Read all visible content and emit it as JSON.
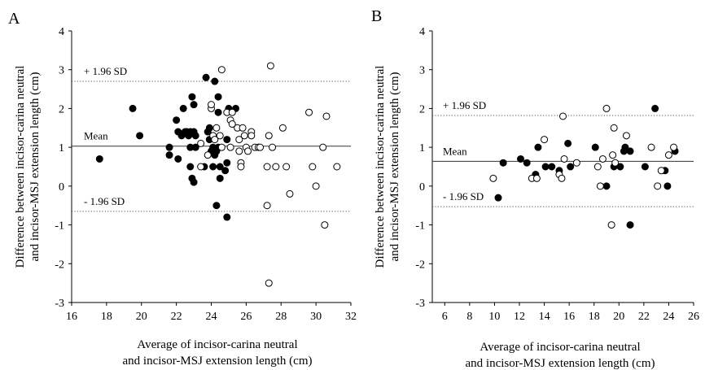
{
  "chart_data": [
    {
      "type": "scatter",
      "panel_label": "A",
      "xlabel": [
        "Average of incisor-carina neutral",
        "and incisor-MSJ extension length (cm)"
      ],
      "ylabel": [
        "Difference between  incisor-carina neutral",
        "and incisor-MSJ extension length (cm)"
      ],
      "xlim": [
        16,
        32
      ],
      "ylim": [
        -3,
        4
      ],
      "xticks": [
        16,
        18,
        20,
        22,
        24,
        26,
        28,
        30,
        32
      ],
      "yticks": [
        -3,
        -2,
        -1,
        0,
        1,
        2,
        3,
        4
      ],
      "grid": false,
      "reference_lines": [
        {
          "label": "+ 1.96 SD",
          "y": 2.7,
          "style": "dotted"
        },
        {
          "label": "Mean",
          "y": 1.03,
          "style": "solid"
        },
        {
          "label": "- 1.96 SD",
          "y": -0.65,
          "style": "dotted"
        }
      ],
      "series": [
        {
          "marker": "filled",
          "points": [
            [
              17.6,
              0.7
            ],
            [
              19.5,
              2.0
            ],
            [
              19.9,
              1.3
            ],
            [
              21.6,
              1.0
            ],
            [
              21.6,
              0.8
            ],
            [
              22.0,
              1.7
            ],
            [
              22.1,
              1.4
            ],
            [
              22.1,
              0.7
            ],
            [
              22.3,
              1.3
            ],
            [
              22.4,
              2.0
            ],
            [
              22.5,
              1.4
            ],
            [
              22.6,
              1.4
            ],
            [
              22.7,
              1.3
            ],
            [
              22.8,
              1.0
            ],
            [
              22.8,
              1.4
            ],
            [
              22.8,
              0.5
            ],
            [
              22.9,
              2.3
            ],
            [
              22.9,
              0.2
            ],
            [
              23.0,
              1.4
            ],
            [
              23.0,
              2.1
            ],
            [
              23.0,
              0.1
            ],
            [
              23.1,
              1.3
            ],
            [
              23.1,
              1.0
            ],
            [
              23.6,
              0.5
            ],
            [
              23.7,
              2.8
            ],
            [
              23.8,
              1.4
            ],
            [
              23.9,
              1.5
            ],
            [
              23.9,
              1.2
            ],
            [
              24.0,
              0.9
            ],
            [
              24.1,
              0.5
            ],
            [
              24.1,
              1.0
            ],
            [
              24.2,
              2.7
            ],
            [
              24.2,
              0.8
            ],
            [
              24.3,
              -0.5
            ],
            [
              24.3,
              0.9
            ],
            [
              24.4,
              2.3
            ],
            [
              24.4,
              1.9
            ],
            [
              24.4,
              1.0
            ],
            [
              24.5,
              0.5
            ],
            [
              24.5,
              0.2
            ],
            [
              24.8,
              0.4
            ],
            [
              24.9,
              1.2
            ],
            [
              24.9,
              0.6
            ],
            [
              24.9,
              -0.8
            ],
            [
              25.0,
              2.0
            ],
            [
              25.4,
              2.0
            ]
          ]
        },
        {
          "marker": "open",
          "points": [
            [
              23.4,
              0.5
            ],
            [
              23.4,
              1.1
            ],
            [
              23.8,
              0.8
            ],
            [
              24.0,
              2.0
            ],
            [
              24.0,
              2.1
            ],
            [
              24.1,
              1.3
            ],
            [
              24.2,
              1.2
            ],
            [
              24.3,
              1.5
            ],
            [
              24.5,
              1.3
            ],
            [
              24.6,
              3.0
            ],
            [
              24.6,
              1.0
            ],
            [
              24.9,
              1.9
            ],
            [
              25.1,
              1.7
            ],
            [
              25.1,
              1.0
            ],
            [
              25.2,
              1.6
            ],
            [
              25.2,
              1.9
            ],
            [
              25.5,
              1.5
            ],
            [
              25.6,
              1.2
            ],
            [
              25.6,
              0.9
            ],
            [
              25.7,
              0.6
            ],
            [
              25.7,
              0.5
            ],
            [
              25.8,
              1.5
            ],
            [
              25.9,
              1.3
            ],
            [
              26.0,
              1.0
            ],
            [
              26.1,
              0.9
            ],
            [
              26.3,
              1.4
            ],
            [
              26.3,
              1.3
            ],
            [
              26.5,
              1.0
            ],
            [
              26.7,
              1.0
            ],
            [
              26.8,
              1.0
            ],
            [
              27.2,
              -0.5
            ],
            [
              27.2,
              0.5
            ],
            [
              27.3,
              1.3
            ],
            [
              27.3,
              -2.5
            ],
            [
              27.4,
              3.1
            ],
            [
              27.5,
              1.0
            ],
            [
              27.7,
              0.5
            ],
            [
              28.1,
              1.5
            ],
            [
              28.3,
              0.5
            ],
            [
              28.5,
              -0.2
            ],
            [
              29.6,
              1.9
            ],
            [
              29.8,
              0.5
            ],
            [
              30.0,
              0.0
            ],
            [
              30.4,
              1.0
            ],
            [
              30.5,
              -1.0
            ],
            [
              30.6,
              1.8
            ],
            [
              31.2,
              0.5
            ]
          ]
        }
      ]
    },
    {
      "type": "scatter",
      "panel_label": "B",
      "xlabel": [
        "Average of incisor-carina neutral",
        "and incisor-MSJ extension length (cm)"
      ],
      "ylabel": [
        "Difference between  incisor-carina neutral",
        "and incisor-MSJ extension length (cm)"
      ],
      "xlim": [
        5,
        26
      ],
      "ylim": [
        -3,
        4
      ],
      "xticks": [
        6,
        8,
        10,
        12,
        14,
        16,
        18,
        20,
        22,
        24,
        26
      ],
      "yticks": [
        -3,
        -2,
        -1,
        0,
        1,
        2,
        3,
        4
      ],
      "grid": false,
      "reference_lines": [
        {
          "label": "+ 1.96 SD",
          "y": 1.82,
          "style": "dotted"
        },
        {
          "label": "Mean",
          "y": 0.64,
          "style": "solid"
        },
        {
          "label": "- 1.96 SD",
          "y": -0.53,
          "style": "dotted"
        }
      ],
      "series": [
        {
          "marker": "filled",
          "points": [
            [
              10.3,
              -0.3
            ],
            [
              10.7,
              0.6
            ],
            [
              12.1,
              0.7
            ],
            [
              12.6,
              0.6
            ],
            [
              13.3,
              0.3
            ],
            [
              13.5,
              1.0
            ],
            [
              14.1,
              0.5
            ],
            [
              14.6,
              0.5
            ],
            [
              15.2,
              0.4
            ],
            [
              15.9,
              1.1
            ],
            [
              16.1,
              0.5
            ],
            [
              18.1,
              1.0
            ],
            [
              19.0,
              0.0
            ],
            [
              19.6,
              0.5
            ],
            [
              20.1,
              0.5
            ],
            [
              20.4,
              0.9
            ],
            [
              20.5,
              1.0
            ],
            [
              20.9,
              0.9
            ],
            [
              20.9,
              -1.0
            ],
            [
              22.1,
              0.5
            ],
            [
              22.9,
              2.0
            ],
            [
              23.7,
              0.4
            ],
            [
              23.9,
              0.0
            ],
            [
              24.5,
              0.9
            ]
          ]
        },
        {
          "marker": "open",
          "points": [
            [
              9.9,
              0.2
            ],
            [
              13.0,
              0.2
            ],
            [
              13.4,
              0.2
            ],
            [
              14.0,
              1.2
            ],
            [
              15.2,
              0.3
            ],
            [
              15.4,
              0.2
            ],
            [
              15.5,
              1.8
            ],
            [
              15.6,
              0.7
            ],
            [
              16.6,
              0.6
            ],
            [
              18.3,
              0.5
            ],
            [
              18.5,
              0.0
            ],
            [
              18.7,
              0.7
            ],
            [
              19.0,
              2.0
            ],
            [
              19.4,
              -1.0
            ],
            [
              19.5,
              0.8
            ],
            [
              19.6,
              1.5
            ],
            [
              19.7,
              0.6
            ],
            [
              20.6,
              1.3
            ],
            [
              22.6,
              1.0
            ],
            [
              23.1,
              0.0
            ],
            [
              23.4,
              0.4
            ],
            [
              24.0,
              0.8
            ],
            [
              24.4,
              1.0
            ]
          ]
        }
      ]
    }
  ]
}
